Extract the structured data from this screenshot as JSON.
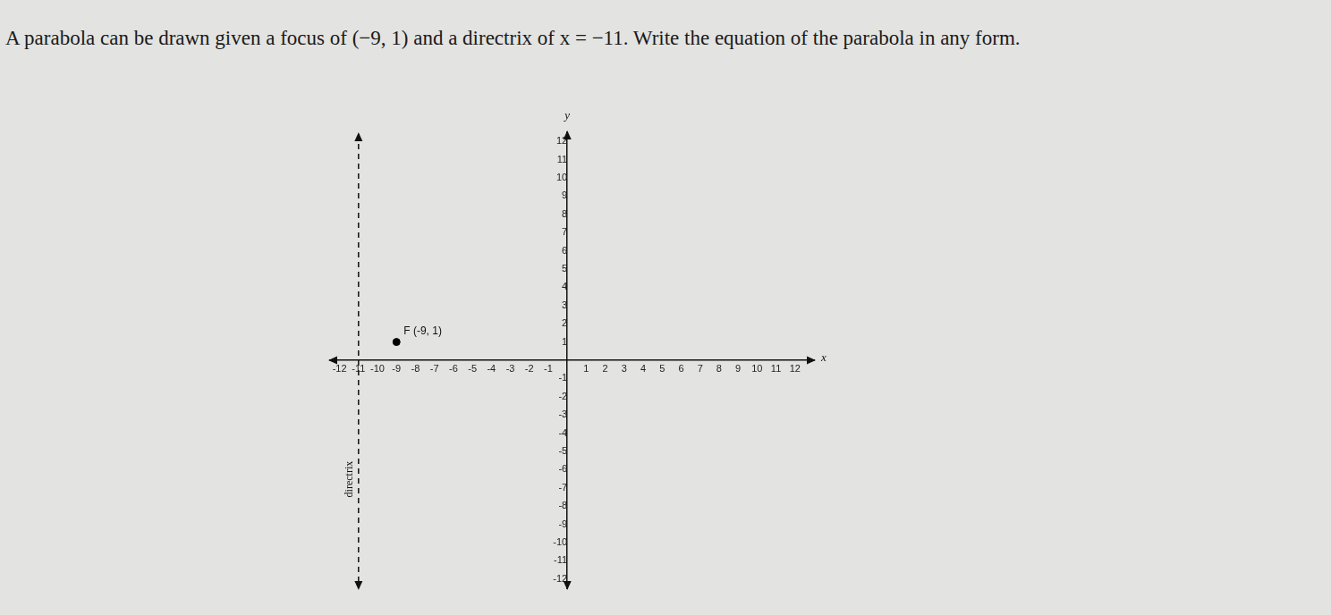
{
  "chart_data": {
    "type": "scatter",
    "title": "A parabola can be drawn given a focus of (−9, 1) and a directrix of x = −11. Write the equation of the parabola in any form.",
    "x_label": "x",
    "y_label": "y",
    "xlim": [
      -12.5,
      13
    ],
    "ylim": [
      -12.5,
      12.5
    ],
    "xticks": [
      -12,
      -11,
      -10,
      -9,
      -8,
      -7,
      -6,
      -5,
      -4,
      -3,
      -2,
      -1,
      1,
      2,
      3,
      4,
      5,
      6,
      7,
      8,
      9,
      10,
      11,
      12
    ],
    "yticks": [
      -12,
      -11,
      -10,
      -9,
      -8,
      -7,
      -6,
      -5,
      -4,
      -3,
      -2,
      -1,
      1,
      2,
      3,
      4,
      5,
      6,
      7,
      8,
      9,
      10,
      11,
      12
    ],
    "grid": false,
    "series": [
      {
        "name": "F (-9, 1)",
        "type": "scatter",
        "marker": "circle",
        "color": "#000000",
        "x": [
          -9
        ],
        "values": [
          1
        ]
      },
      {
        "name": "directrix",
        "type": "line",
        "line_style": "dashed",
        "color": "#111111",
        "x": [
          -11,
          -11
        ],
        "values": [
          12.4,
          -12.5
        ]
      }
    ]
  }
}
